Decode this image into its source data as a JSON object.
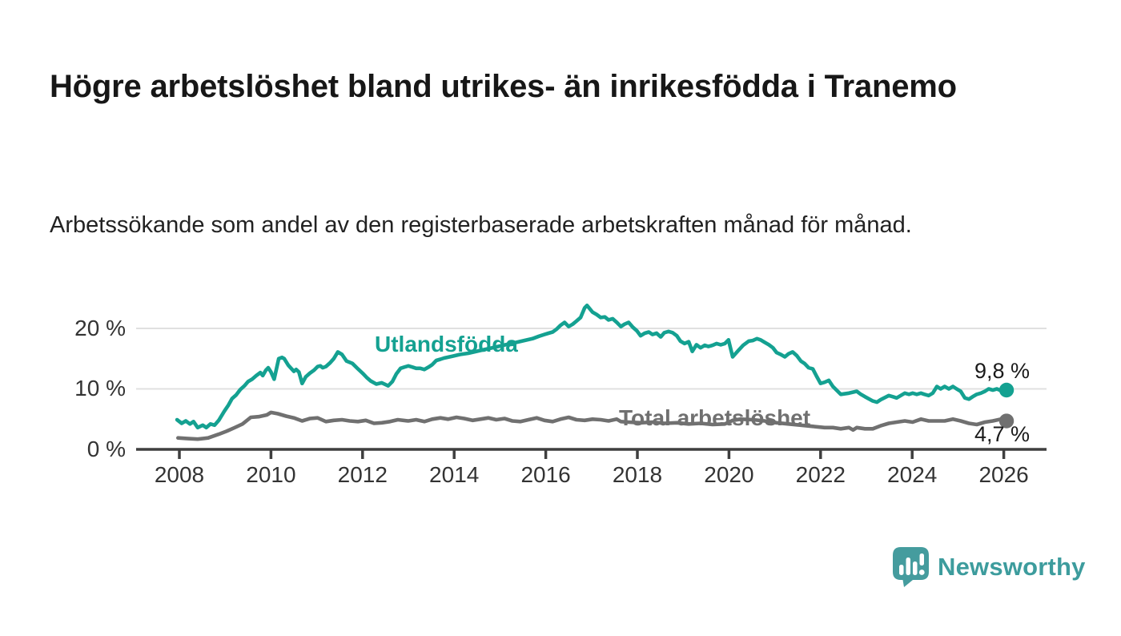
{
  "header": {
    "title": "Högre arbetslöshet bland utrikes- än inrikesfödda i Tranemo",
    "subtitle": "Arbetssökande som andel av den registerbaserade arbetskraften månad för månad."
  },
  "branding": {
    "name": "Newsworthy",
    "text_color": "#3D9C9D",
    "icon_color": "#459C9E"
  },
  "chart_data": {
    "type": "line",
    "title": "Högre arbetslöshet bland utrikes- än inrikesfödda i Tranemo",
    "xlabel": "",
    "ylabel": "",
    "unit": "%",
    "grid": true,
    "legend_position": "inline-labels",
    "x_axis": {
      "range": [
        2007.05,
        2026.95
      ],
      "ticks": [
        2008,
        2010,
        2012,
        2014,
        2016,
        2018,
        2020,
        2022,
        2024,
        2026
      ]
    },
    "y_axis": {
      "range": [
        0,
        25
      ],
      "ticks": [
        {
          "value": 0,
          "label": "0 %"
        },
        {
          "value": 10,
          "label": "10 %"
        },
        {
          "value": 20,
          "label": "20 %"
        }
      ]
    },
    "axis_color": "#3f3f3f",
    "grid_color": "#e0e0e0",
    "tick_label_color": "#333333",
    "series": [
      {
        "name": "Utlandsfödda",
        "color": "#14A191",
        "end_label": "9,8 %",
        "end_value": 9.8,
        "points": [
          [
            2007.95,
            4.9
          ],
          [
            2008.05,
            4.3
          ],
          [
            2008.14,
            4.7
          ],
          [
            2008.23,
            4.2
          ],
          [
            2008.31,
            4.6
          ],
          [
            2008.4,
            3.6
          ],
          [
            2008.51,
            4.0
          ],
          [
            2008.59,
            3.6
          ],
          [
            2008.68,
            4.2
          ],
          [
            2008.77,
            4.0
          ],
          [
            2008.86,
            4.8
          ],
          [
            2008.98,
            6.3
          ],
          [
            2009.07,
            7.3
          ],
          [
            2009.15,
            8.4
          ],
          [
            2009.24,
            9.0
          ],
          [
            2009.33,
            9.9
          ],
          [
            2009.42,
            10.5
          ],
          [
            2009.5,
            11.2
          ],
          [
            2009.59,
            11.6
          ],
          [
            2009.68,
            12.2
          ],
          [
            2009.77,
            12.7
          ],
          [
            2009.82,
            12.2
          ],
          [
            2009.89,
            13.1
          ],
          [
            2009.94,
            13.5
          ],
          [
            2010.0,
            12.8
          ],
          [
            2010.07,
            11.6
          ],
          [
            2010.17,
            15.0
          ],
          [
            2010.24,
            15.2
          ],
          [
            2010.29,
            15.0
          ],
          [
            2010.38,
            13.9
          ],
          [
            2010.5,
            12.9
          ],
          [
            2010.55,
            13.2
          ],
          [
            2010.61,
            12.8
          ],
          [
            2010.68,
            10.9
          ],
          [
            2010.76,
            12.0
          ],
          [
            2010.85,
            12.6
          ],
          [
            2010.94,
            13.1
          ],
          [
            2011.02,
            13.7
          ],
          [
            2011.08,
            13.8
          ],
          [
            2011.13,
            13.5
          ],
          [
            2011.2,
            13.7
          ],
          [
            2011.29,
            14.3
          ],
          [
            2011.37,
            15.0
          ],
          [
            2011.46,
            16.1
          ],
          [
            2011.55,
            15.7
          ],
          [
            2011.65,
            14.6
          ],
          [
            2011.78,
            14.2
          ],
          [
            2011.9,
            13.3
          ],
          [
            2012.0,
            12.6
          ],
          [
            2012.09,
            11.9
          ],
          [
            2012.18,
            11.3
          ],
          [
            2012.3,
            10.8
          ],
          [
            2012.42,
            11.0
          ],
          [
            2012.56,
            10.5
          ],
          [
            2012.65,
            11.2
          ],
          [
            2012.74,
            12.5
          ],
          [
            2012.83,
            13.4
          ],
          [
            2012.91,
            13.6
          ],
          [
            2013.0,
            13.8
          ],
          [
            2013.09,
            13.6
          ],
          [
            2013.17,
            13.4
          ],
          [
            2013.26,
            13.4
          ],
          [
            2013.35,
            13.2
          ],
          [
            2013.44,
            13.6
          ],
          [
            2013.52,
            14.0
          ],
          [
            2013.61,
            14.7
          ],
          [
            2013.7,
            14.9
          ],
          [
            2013.78,
            15.1
          ],
          [
            2013.96,
            15.4
          ],
          [
            2014.13,
            15.7
          ],
          [
            2014.31,
            15.9
          ],
          [
            2014.48,
            16.2
          ],
          [
            2014.66,
            16.5
          ],
          [
            2014.83,
            16.8
          ],
          [
            2015.01,
            17.1
          ],
          [
            2015.18,
            17.4
          ],
          [
            2015.36,
            17.7
          ],
          [
            2015.53,
            18.0
          ],
          [
            2015.71,
            18.3
          ],
          [
            2015.85,
            18.7
          ],
          [
            2015.97,
            19.0
          ],
          [
            2016.06,
            19.2
          ],
          [
            2016.15,
            19.4
          ],
          [
            2016.24,
            19.9
          ],
          [
            2016.32,
            20.5
          ],
          [
            2016.41,
            21.0
          ],
          [
            2016.5,
            20.3
          ],
          [
            2016.59,
            20.7
          ],
          [
            2016.67,
            21.2
          ],
          [
            2016.76,
            21.8
          ],
          [
            2016.85,
            23.4
          ],
          [
            2016.9,
            23.8
          ],
          [
            2017.02,
            22.7
          ],
          [
            2017.11,
            22.3
          ],
          [
            2017.2,
            21.8
          ],
          [
            2017.29,
            21.9
          ],
          [
            2017.37,
            21.4
          ],
          [
            2017.46,
            21.6
          ],
          [
            2017.55,
            21.0
          ],
          [
            2017.64,
            20.3
          ],
          [
            2017.72,
            20.7
          ],
          [
            2017.81,
            21.0
          ],
          [
            2017.9,
            20.2
          ],
          [
            2017.99,
            19.6
          ],
          [
            2018.07,
            18.8
          ],
          [
            2018.16,
            19.2
          ],
          [
            2018.25,
            19.4
          ],
          [
            2018.33,
            19.0
          ],
          [
            2018.42,
            19.2
          ],
          [
            2018.51,
            18.6
          ],
          [
            2018.59,
            19.3
          ],
          [
            2018.68,
            19.5
          ],
          [
            2018.77,
            19.3
          ],
          [
            2018.86,
            18.8
          ],
          [
            2018.94,
            17.9
          ],
          [
            2019.03,
            17.5
          ],
          [
            2019.12,
            17.8
          ],
          [
            2019.2,
            16.2
          ],
          [
            2019.29,
            17.3
          ],
          [
            2019.38,
            16.8
          ],
          [
            2019.47,
            17.2
          ],
          [
            2019.55,
            17.0
          ],
          [
            2019.64,
            17.2
          ],
          [
            2019.73,
            17.5
          ],
          [
            2019.82,
            17.3
          ],
          [
            2019.91,
            17.5
          ],
          [
            2019.99,
            18.1
          ],
          [
            2020.08,
            15.3
          ],
          [
            2020.2,
            16.3
          ],
          [
            2020.31,
            17.2
          ],
          [
            2020.43,
            17.9
          ],
          [
            2020.52,
            18.0
          ],
          [
            2020.61,
            18.3
          ],
          [
            2020.69,
            18.1
          ],
          [
            2020.78,
            17.7
          ],
          [
            2020.87,
            17.3
          ],
          [
            2020.96,
            16.8
          ],
          [
            2021.04,
            16.0
          ],
          [
            2021.13,
            15.7
          ],
          [
            2021.22,
            15.3
          ],
          [
            2021.3,
            15.8
          ],
          [
            2021.39,
            16.1
          ],
          [
            2021.48,
            15.5
          ],
          [
            2021.57,
            14.6
          ],
          [
            2021.65,
            14.2
          ],
          [
            2021.74,
            13.5
          ],
          [
            2021.83,
            13.3
          ],
          [
            2021.92,
            12.0
          ],
          [
            2022.0,
            10.9
          ],
          [
            2022.09,
            11.1
          ],
          [
            2022.18,
            11.4
          ],
          [
            2022.27,
            10.4
          ],
          [
            2022.44,
            9.1
          ],
          [
            2022.62,
            9.3
          ],
          [
            2022.79,
            9.6
          ],
          [
            2022.88,
            9.1
          ],
          [
            2022.97,
            8.7
          ],
          [
            2023.14,
            8.0
          ],
          [
            2023.23,
            7.8
          ],
          [
            2023.31,
            8.2
          ],
          [
            2023.49,
            8.9
          ],
          [
            2023.58,
            8.7
          ],
          [
            2023.66,
            8.5
          ],
          [
            2023.84,
            9.3
          ],
          [
            2023.93,
            9.1
          ],
          [
            2024.01,
            9.3
          ],
          [
            2024.1,
            9.1
          ],
          [
            2024.19,
            9.3
          ],
          [
            2024.27,
            9.1
          ],
          [
            2024.36,
            8.9
          ],
          [
            2024.45,
            9.3
          ],
          [
            2024.54,
            10.4
          ],
          [
            2024.62,
            10.0
          ],
          [
            2024.71,
            10.4
          ],
          [
            2024.8,
            10.0
          ],
          [
            2024.89,
            10.4
          ],
          [
            2024.97,
            10.0
          ],
          [
            2025.06,
            9.6
          ],
          [
            2025.15,
            8.5
          ],
          [
            2025.24,
            8.3
          ],
          [
            2025.32,
            8.7
          ],
          [
            2025.41,
            9.1
          ],
          [
            2025.5,
            9.3
          ],
          [
            2025.59,
            9.6
          ],
          [
            2025.67,
            10.0
          ],
          [
            2025.76,
            9.8
          ],
          [
            2025.85,
            10.0
          ],
          [
            2025.94,
            9.7
          ],
          [
            2026.06,
            9.8
          ]
        ]
      },
      {
        "name": "Total arbetslöshet",
        "color": "#707070",
        "end_label": "4,7 %",
        "end_value": 4.7,
        "points": [
          [
            2007.97,
            1.9
          ],
          [
            2008.16,
            1.8
          ],
          [
            2008.4,
            1.7
          ],
          [
            2008.63,
            1.9
          ],
          [
            2008.86,
            2.5
          ],
          [
            2009.03,
            3.0
          ],
          [
            2009.21,
            3.6
          ],
          [
            2009.38,
            4.2
          ],
          [
            2009.56,
            5.3
          ],
          [
            2009.73,
            5.4
          ],
          [
            2009.91,
            5.7
          ],
          [
            2010.0,
            6.1
          ],
          [
            2010.15,
            5.9
          ],
          [
            2010.33,
            5.5
          ],
          [
            2010.5,
            5.2
          ],
          [
            2010.68,
            4.7
          ],
          [
            2010.85,
            5.1
          ],
          [
            2011.02,
            5.2
          ],
          [
            2011.2,
            4.6
          ],
          [
            2011.37,
            4.8
          ],
          [
            2011.55,
            4.9
          ],
          [
            2011.72,
            4.7
          ],
          [
            2011.9,
            4.6
          ],
          [
            2012.07,
            4.8
          ],
          [
            2012.25,
            4.3
          ],
          [
            2012.42,
            4.4
          ],
          [
            2012.6,
            4.6
          ],
          [
            2012.77,
            4.9
          ],
          [
            2013.0,
            4.7
          ],
          [
            2013.17,
            4.9
          ],
          [
            2013.35,
            4.6
          ],
          [
            2013.52,
            5.0
          ],
          [
            2013.7,
            5.2
          ],
          [
            2013.87,
            5.0
          ],
          [
            2014.05,
            5.3
          ],
          [
            2014.22,
            5.1
          ],
          [
            2014.4,
            4.8
          ],
          [
            2014.57,
            5.0
          ],
          [
            2014.75,
            5.2
          ],
          [
            2014.92,
            4.9
          ],
          [
            2015.1,
            5.1
          ],
          [
            2015.27,
            4.7
          ],
          [
            2015.45,
            4.6
          ],
          [
            2015.62,
            4.9
          ],
          [
            2015.8,
            5.2
          ],
          [
            2015.97,
            4.8
          ],
          [
            2016.15,
            4.6
          ],
          [
            2016.32,
            5.0
          ],
          [
            2016.5,
            5.3
          ],
          [
            2016.67,
            4.9
          ],
          [
            2016.85,
            4.8
          ],
          [
            2017.02,
            5.0
          ],
          [
            2017.2,
            4.9
          ],
          [
            2017.37,
            4.7
          ],
          [
            2017.55,
            5.0
          ],
          [
            2017.64,
            4.6
          ],
          [
            2017.81,
            4.5
          ],
          [
            2018.07,
            4.4
          ],
          [
            2018.33,
            4.5
          ],
          [
            2018.59,
            4.3
          ],
          [
            2018.86,
            4.4
          ],
          [
            2019.12,
            4.2
          ],
          [
            2019.38,
            4.3
          ],
          [
            2019.64,
            4.1
          ],
          [
            2019.91,
            4.2
          ],
          [
            2020.08,
            4.8
          ],
          [
            2020.25,
            5.0
          ],
          [
            2020.52,
            4.9
          ],
          [
            2020.78,
            4.7
          ],
          [
            2021.04,
            4.4
          ],
          [
            2021.3,
            4.2
          ],
          [
            2021.57,
            4.0
          ],
          [
            2021.83,
            3.8
          ],
          [
            2022.09,
            3.6
          ],
          [
            2022.27,
            3.6
          ],
          [
            2022.44,
            3.4
          ],
          [
            2022.62,
            3.6
          ],
          [
            2022.71,
            3.2
          ],
          [
            2022.79,
            3.6
          ],
          [
            2022.97,
            3.4
          ],
          [
            2023.14,
            3.4
          ],
          [
            2023.31,
            3.9
          ],
          [
            2023.49,
            4.3
          ],
          [
            2023.66,
            4.5
          ],
          [
            2023.84,
            4.7
          ],
          [
            2024.01,
            4.5
          ],
          [
            2024.19,
            5.0
          ],
          [
            2024.36,
            4.7
          ],
          [
            2024.54,
            4.7
          ],
          [
            2024.71,
            4.7
          ],
          [
            2024.89,
            5.0
          ],
          [
            2025.06,
            4.7
          ],
          [
            2025.24,
            4.3
          ],
          [
            2025.41,
            4.1
          ],
          [
            2025.59,
            4.5
          ],
          [
            2025.76,
            4.7
          ],
          [
            2025.94,
            5.0
          ],
          [
            2026.06,
            4.7
          ]
        ]
      }
    ]
  }
}
